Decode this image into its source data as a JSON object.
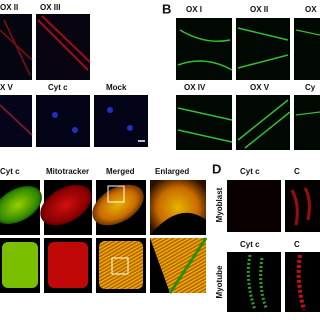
{
  "panels": {
    "a": {
      "labels": [
        "OX II",
        "OX III",
        "X V",
        "Cyt c",
        "Mock"
      ]
    },
    "b": {
      "letter": "B",
      "labels": [
        "OX I",
        "OX II",
        "OX",
        "OX IV",
        "OX V",
        "Cy"
      ]
    },
    "c": {
      "labels": [
        "Cyt c",
        "Mitotracker",
        "Merged",
        "Enlarged"
      ]
    },
    "d": {
      "letter": "D",
      "top_labels": [
        "Cyt c",
        "C"
      ],
      "rows": [
        "Myoblast",
        "Myotube"
      ],
      "bottom_labels": [
        "Cyt c",
        "C"
      ]
    }
  }
}
